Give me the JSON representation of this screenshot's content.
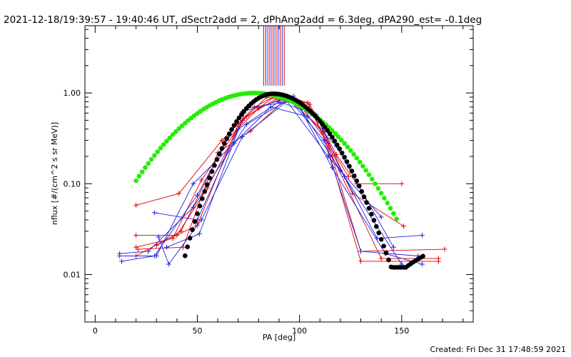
{
  "chart_data": {
    "type": "scatter",
    "title": "2021-12-18/19:39:57 - 19:40:46 UT, dSectr2add = 2, dPhAng2add = 6.3deg, dPA290_est= -0.1deg",
    "xlabel": "PA [deg]",
    "ylabel": "nflux [#/(cm^2 s sr MeV)]",
    "xlim": [
      -5,
      185
    ],
    "ylim": [
      0.003,
      5.5
    ],
    "yscale": "log",
    "x_ticks": [
      {
        "value": 0,
        "label": "0"
      },
      {
        "value": 50,
        "label": "50"
      },
      {
        "value": 100,
        "label": "100"
      },
      {
        "value": 150,
        "label": "150"
      }
    ],
    "y_ticks": [
      {
        "value": 0.01,
        "label": "0.01"
      },
      {
        "value": 0.1,
        "label": "0.10"
      },
      {
        "value": 1.0,
        "label": "1.00"
      }
    ],
    "grid": false,
    "footer": "Created: Fri Dec 31 17:48:59 2021",
    "vlines": {
      "y_range": [
        1.2,
        5.5
      ],
      "red_x": [
        82.5,
        84.5,
        86.5,
        88.5,
        90.5,
        92.5
      ],
      "blue_x": [
        83.5,
        85.5,
        87.5,
        89.5,
        91.5
      ]
    },
    "series": [
      {
        "color": "#e00000",
        "points": [
          [
            20,
            0.058
          ],
          [
            41,
            0.078
          ],
          [
            62,
            0.3
          ],
          [
            78,
            0.7
          ],
          [
            90,
            0.97
          ],
          [
            105,
            0.75
          ],
          [
            118,
            0.21
          ],
          [
            128,
            0.1
          ],
          [
            150,
            0.1
          ]
        ]
      },
      {
        "color": "#e00000",
        "points": [
          [
            20,
            0.027
          ],
          [
            40,
            0.027
          ],
          [
            55,
            0.09
          ],
          [
            72,
            0.5
          ],
          [
            88,
            0.92
          ],
          [
            106,
            0.62
          ],
          [
            126,
            0.078
          ],
          [
            151,
            0.034
          ]
        ]
      },
      {
        "color": "#e00000",
        "points": [
          [
            20,
            0.02
          ],
          [
            38,
            0.025
          ],
          [
            52,
            0.11
          ],
          [
            74,
            0.55
          ],
          [
            92,
            0.95
          ],
          [
            110,
            0.48
          ],
          [
            130,
            0.014
          ],
          [
            168,
            0.014
          ]
        ]
      },
      {
        "color": "#e00000",
        "points": [
          [
            20,
            0.016
          ],
          [
            42,
            0.03
          ],
          [
            64,
            0.3
          ],
          [
            80,
            0.68
          ],
          [
            94,
            0.92
          ],
          [
            104,
            0.78
          ],
          [
            116,
            0.2
          ],
          [
            140,
            0.015
          ],
          [
            168,
            0.015
          ]
        ]
      },
      {
        "color": "#e00000",
        "points": [
          [
            21,
            0.019
          ],
          [
            43,
            0.02
          ],
          [
            60,
            0.22
          ],
          [
            76,
            0.38
          ],
          [
            94,
            0.88
          ],
          [
            112,
            0.38
          ],
          [
            130,
            0.018
          ],
          [
            171,
            0.019
          ]
        ]
      },
      {
        "color": "#e00000",
        "points": [
          [
            30,
            0.021
          ],
          [
            50,
            0.035
          ],
          [
            70,
            0.45
          ],
          [
            84,
            0.9
          ],
          [
            100,
            0.75
          ],
          [
            114,
            0.28
          ],
          [
            124,
            0.12
          ]
        ]
      },
      {
        "color": "#2020e0",
        "points": [
          [
            12,
            0.017
          ],
          [
            26,
            0.018
          ],
          [
            48,
            0.055
          ],
          [
            74,
            0.45
          ],
          [
            95,
            0.85
          ],
          [
            112,
            0.3
          ],
          [
            130,
            0.018
          ],
          [
            158,
            0.016
          ]
        ]
      },
      {
        "color": "#2020e0",
        "points": [
          [
            13,
            0.014
          ],
          [
            29,
            0.016
          ],
          [
            50,
            0.075
          ],
          [
            72,
            0.62
          ],
          [
            93,
            0.86
          ],
          [
            114,
            0.2
          ],
          [
            140,
            0.043
          ]
        ]
      },
      {
        "color": "#2020e0",
        "points": [
          [
            29,
            0.048
          ],
          [
            50,
            0.04
          ],
          [
            70,
            0.4
          ],
          [
            90,
            0.8
          ],
          [
            108,
            0.58
          ],
          [
            122,
            0.12
          ],
          [
            138,
            0.025
          ],
          [
            160,
            0.027
          ]
        ]
      },
      {
        "color": "#2020e0",
        "points": [
          [
            12,
            0.016
          ],
          [
            30,
            0.016
          ],
          [
            48,
            0.1
          ],
          [
            68,
            0.28
          ],
          [
            86,
            0.7
          ],
          [
            104,
            0.55
          ],
          [
            118,
            0.26
          ],
          [
            146,
            0.02
          ]
        ]
      },
      {
        "color": "#2020e0",
        "points": [
          [
            31,
            0.026
          ],
          [
            36,
            0.013
          ],
          [
            52,
            0.04
          ],
          [
            72,
            0.33
          ],
          [
            97,
            0.92
          ],
          [
            116,
            0.15
          ],
          [
            142,
            0.017
          ],
          [
            160,
            0.013
          ]
        ]
      },
      {
        "color": "#2020e0",
        "points": [
          [
            35,
            0.02
          ],
          [
            51,
            0.028
          ],
          [
            74,
            0.68
          ],
          [
            98,
            0.82
          ],
          [
            120,
            0.14
          ],
          [
            150,
            0.013
          ]
        ]
      }
    ],
    "green_curve": {
      "color": "#22ee00",
      "center": 78,
      "amplitude": 1.0,
      "sigma": 27.5,
      "x_range": [
        20,
        148
      ]
    },
    "black_curve": {
      "color": "#000000",
      "center": 87,
      "amplitude": 0.98,
      "sigma_left": 15,
      "sigma_right": 19.5,
      "floor": 0.012,
      "x_range": [
        44,
        161
      ]
    }
  }
}
